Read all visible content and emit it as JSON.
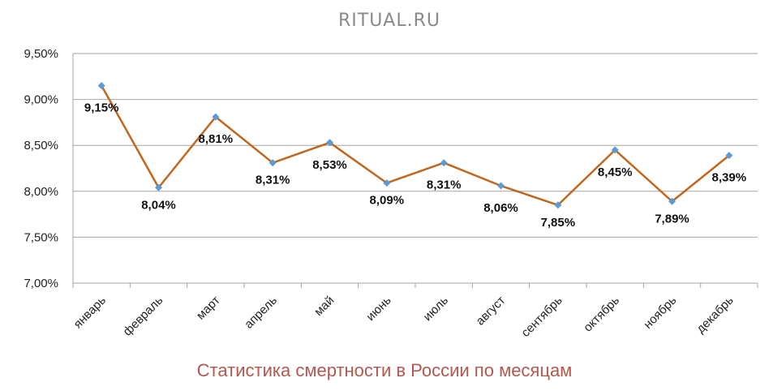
{
  "watermark": "RITUAL.RU",
  "chart_data": {
    "type": "line",
    "title": "Статистика смертности в России по месяцам",
    "xlabel": "",
    "ylabel": "",
    "categories": [
      "январь",
      "февраль",
      "март",
      "апрель",
      "май",
      "июнь",
      "июль",
      "август",
      "сентябрь",
      "октябрь",
      "ноябрь",
      "декабрь"
    ],
    "values": [
      9.15,
      8.04,
      8.81,
      8.31,
      8.53,
      8.09,
      8.31,
      8.06,
      7.85,
      8.45,
      7.89,
      8.39
    ],
    "data_labels": [
      "9,15%",
      "8,04%",
      "8,81%",
      "8,31%",
      "8,53%",
      "8,09%",
      "8,31%",
      "8,06%",
      "7,85%",
      "8,45%",
      "7,89%",
      "8,39%"
    ],
    "ylim": [
      7.0,
      9.5
    ],
    "yticks": [
      7.0,
      7.5,
      8.0,
      8.5,
      9.0,
      9.5
    ],
    "ytick_labels": [
      "7,00%",
      "7,50%",
      "8,00%",
      "8,50%",
      "9,00%",
      "9,50%"
    ],
    "grid": "horizontal",
    "legend": "none",
    "colors": {
      "line": "#c0661e",
      "marker": "#5b9bd5",
      "grid": "#a6a6a6",
      "title": "#b3584f"
    }
  }
}
